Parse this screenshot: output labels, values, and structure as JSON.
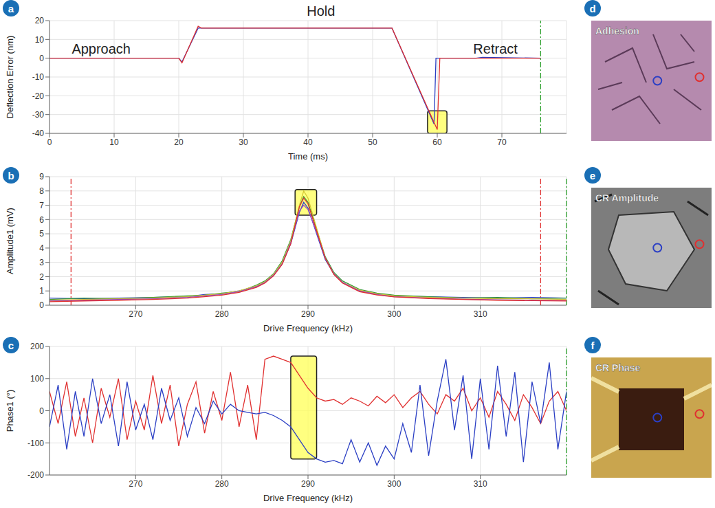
{
  "chart_data": [
    {
      "panel": "a",
      "type": "line",
      "xlabel": "Time (ms)",
      "ylabel": "Deflection Error (nm)",
      "xlim": [
        0,
        80
      ],
      "xticks": [
        0,
        10,
        20,
        30,
        40,
        50,
        60,
        70
      ],
      "ylim": [
        -40,
        20
      ],
      "yticks": [
        -40,
        -30,
        -20,
        -10,
        0,
        10,
        20
      ],
      "grid": true,
      "annotations": [
        {
          "text": "Approach",
          "x": 8,
          "y": 5
        },
        {
          "text": "Hold",
          "x": 42,
          "y": 25
        },
        {
          "text": "Retract",
          "x": 69,
          "y": 5
        }
      ],
      "vlines": [
        {
          "x": 76,
          "color": "#2ca02c"
        }
      ],
      "highlights": [
        {
          "x": [
            58.5,
            61.5
          ],
          "y": [
            -40,
            -28
          ]
        }
      ],
      "series": [
        {
          "color": "#2b3fc4",
          "x": [
            0,
            20,
            20.5,
            23,
            53,
            59.5,
            59.8,
            66,
            67,
            76
          ],
          "values": [
            0,
            0,
            -2,
            16,
            16,
            -35,
            0,
            0,
            0.5,
            0
          ]
        },
        {
          "color": "#e03030",
          "x": [
            0,
            20,
            20.5,
            23,
            23.5,
            53,
            60,
            60.4,
            76
          ],
          "values": [
            0,
            0,
            -2.5,
            17,
            16,
            16,
            -38,
            0,
            0
          ]
        }
      ]
    },
    {
      "panel": "b",
      "type": "line",
      "xlabel": "Drive Frequency (kHz)",
      "ylabel": "Amplitude1 (mV)",
      "xlim": [
        260,
        320
      ],
      "xticks": [
        270,
        280,
        290,
        300,
        310
      ],
      "ylim": [
        0,
        9
      ],
      "yticks": [
        0,
        1,
        2,
        3,
        4,
        5,
        6,
        7,
        8,
        9
      ],
      "grid": true,
      "vlines": [
        {
          "x": 262.5,
          "color": "#e03030"
        },
        {
          "x": 317,
          "color": "#e03030"
        },
        {
          "x": 320,
          "color": "#2ca02c"
        }
      ],
      "highlights": [
        {
          "x": [
            288.5,
            291
          ],
          "y": [
            6.3,
            8.1
          ]
        }
      ],
      "x": [
        260,
        264,
        268,
        272,
        276,
        278,
        280,
        282,
        284,
        285,
        286,
        287,
        288,
        289,
        289.5,
        290,
        291,
        292,
        293,
        294,
        296,
        298,
        300,
        304,
        308,
        312,
        316,
        320
      ],
      "series": [
        {
          "color": "#2b3fc4",
          "values": [
            0.5,
            0.45,
            0.5,
            0.55,
            0.6,
            0.75,
            0.8,
            1.0,
            1.3,
            1.6,
            2.1,
            2.9,
            4.3,
            6.5,
            7.2,
            6.8,
            5.0,
            3.2,
            2.2,
            1.6,
            1.0,
            0.8,
            0.65,
            0.6,
            0.55,
            0.5,
            0.55,
            0.5
          ]
        },
        {
          "color": "#3a9a3a",
          "values": [
            0.4,
            0.5,
            0.45,
            0.55,
            0.65,
            0.7,
            0.85,
            0.95,
            1.4,
            1.7,
            2.2,
            3.1,
            4.6,
            6.9,
            7.6,
            7.2,
            5.3,
            3.4,
            2.3,
            1.7,
            1.1,
            0.85,
            0.7,
            0.6,
            0.5,
            0.55,
            0.45,
            0.5
          ]
        },
        {
          "color": "#d4c832",
          "values": [
            0.35,
            0.4,
            0.45,
            0.5,
            0.6,
            0.7,
            0.8,
            1.0,
            1.35,
            1.65,
            2.15,
            3.0,
            4.5,
            7.0,
            8.0,
            7.5,
            5.4,
            3.3,
            2.2,
            1.6,
            1.05,
            0.8,
            0.65,
            0.55,
            0.5,
            0.45,
            0.45,
            0.4
          ]
        },
        {
          "color": "#9b4fc0",
          "values": [
            0.3,
            0.35,
            0.4,
            0.45,
            0.55,
            0.65,
            0.75,
            0.95,
            1.3,
            1.6,
            2.1,
            2.9,
            4.4,
            6.6,
            7.0,
            6.7,
            5.1,
            3.3,
            2.2,
            1.6,
            1.0,
            0.75,
            0.6,
            0.5,
            0.42,
            0.38,
            0.35,
            0.33
          ]
        },
        {
          "color": "#e03030",
          "values": [
            0.25,
            0.3,
            0.35,
            0.4,
            0.5,
            0.6,
            0.7,
            0.9,
            1.25,
            1.55,
            2.05,
            2.85,
            4.3,
            6.9,
            7.5,
            7.1,
            5.2,
            3.3,
            2.15,
            1.55,
            0.95,
            0.72,
            0.58,
            0.47,
            0.4,
            0.35,
            0.32,
            0.3
          ]
        }
      ]
    },
    {
      "panel": "c",
      "type": "line",
      "xlabel": "Drive Frequency (kHz)",
      "ylabel": "Phase1 (°)",
      "xlim": [
        260,
        320
      ],
      "xticks": [
        270,
        280,
        290,
        300,
        310
      ],
      "ylim": [
        -200,
        200
      ],
      "yticks": [
        -200,
        -100,
        0,
        100,
        200
      ],
      "grid": true,
      "vlines": [
        {
          "x": 320,
          "color": "#2ca02c"
        }
      ],
      "highlights": [
        {
          "x": [
            288,
            291
          ],
          "y": [
            -150,
            170
          ]
        }
      ],
      "x": [
        260,
        261,
        262,
        263,
        264,
        265,
        266,
        267,
        268,
        269,
        270,
        271,
        272,
        273,
        274,
        275,
        276,
        277,
        278,
        279,
        280,
        281,
        282,
        283,
        284,
        285,
        286,
        287,
        288,
        289,
        290,
        291,
        292,
        293,
        294,
        295,
        296,
        297,
        298,
        299,
        300,
        301,
        302,
        303,
        304,
        305,
        306,
        307,
        308,
        309,
        310,
        311,
        312,
        313,
        314,
        315,
        316,
        317,
        318,
        319,
        320
      ],
      "series": [
        {
          "color": "#e03030",
          "values": [
            60,
            -40,
            90,
            -80,
            40,
            -100,
            70,
            -20,
            100,
            -90,
            30,
            -60,
            110,
            -40,
            80,
            -110,
            20,
            90,
            -70,
            60,
            -30,
            120,
            -50,
            80,
            -90,
            160,
            170,
            160,
            150,
            110,
            70,
            40,
            30,
            35,
            20,
            40,
            30,
            15,
            45,
            25,
            50,
            10,
            40,
            60,
            20,
            -10,
            50,
            30,
            70,
            0,
            40,
            -20,
            60,
            20,
            -30,
            50,
            10,
            -40,
            30,
            60,
            0
          ]
        },
        {
          "color": "#2b3fc4",
          "values": [
            -50,
            80,
            -120,
            60,
            -80,
            100,
            -40,
            50,
            -110,
            90,
            -60,
            20,
            -90,
            70,
            -30,
            40,
            -80,
            10,
            -40,
            30,
            -10,
            20,
            0,
            -5,
            -10,
            -5,
            -15,
            -30,
            -50,
            -90,
            -130,
            -150,
            -160,
            -155,
            -165,
            -90,
            -160,
            -100,
            -170,
            -110,
            -150,
            -40,
            -130,
            80,
            -140,
            30,
            160,
            -60,
            110,
            -150,
            100,
            -120,
            140,
            -80,
            120,
            -160,
            90,
            -40,
            150,
            -120,
            60
          ]
        }
      ]
    }
  ],
  "images": [
    {
      "panel": "d",
      "label": "Adhesion"
    },
    {
      "panel": "e",
      "label": "CR Amplitude"
    },
    {
      "panel": "f",
      "label": "CR Phase"
    }
  ]
}
